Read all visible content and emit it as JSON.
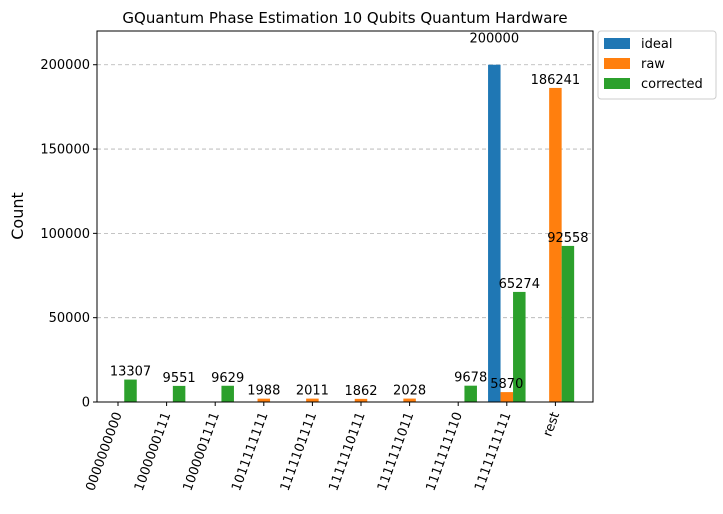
{
  "chart_data": {
    "type": "bar",
    "title": "GQuantum Phase Estimation 10 Qubits Quantum Hardware",
    "xlabel": "",
    "ylabel": "Count",
    "ylim": [
      0,
      220000
    ],
    "yticks": [
      0,
      50000,
      100000,
      150000,
      200000
    ],
    "grid": "y-dashed",
    "legend_position": "outside-top-right",
    "categories": [
      "0000000000",
      "1000000111",
      "1000001111",
      "1011111111",
      "1111101111",
      "1111110111",
      "1111111011",
      "1111111110",
      "1111111111",
      "rest"
    ],
    "series": [
      {
        "name": "ideal",
        "color": "#1f77b4",
        "values": [
          0,
          0,
          0,
          0,
          0,
          0,
          0,
          0,
          200000,
          0
        ],
        "labels": [
          "",
          "",
          "",
          "",
          "",
          "",
          "",
          "",
          "200000",
          ""
        ]
      },
      {
        "name": "raw",
        "color": "#ff7f0e",
        "values": [
          0,
          0,
          0,
          1988,
          2011,
          1862,
          2028,
          0,
          5870,
          186241
        ],
        "labels": [
          "",
          "",
          "",
          "1988",
          "2011",
          "1862",
          "2028",
          "",
          "5870",
          "186241"
        ]
      },
      {
        "name": "corrected",
        "color": "#2ca02c",
        "values": [
          13307,
          9551,
          9629,
          0,
          0,
          0,
          0,
          9678,
          65274,
          92558
        ],
        "labels": [
          "13307",
          "9551",
          "9629",
          "",
          "",
          "",
          "",
          "9678",
          "65274",
          "92558"
        ]
      }
    ]
  }
}
